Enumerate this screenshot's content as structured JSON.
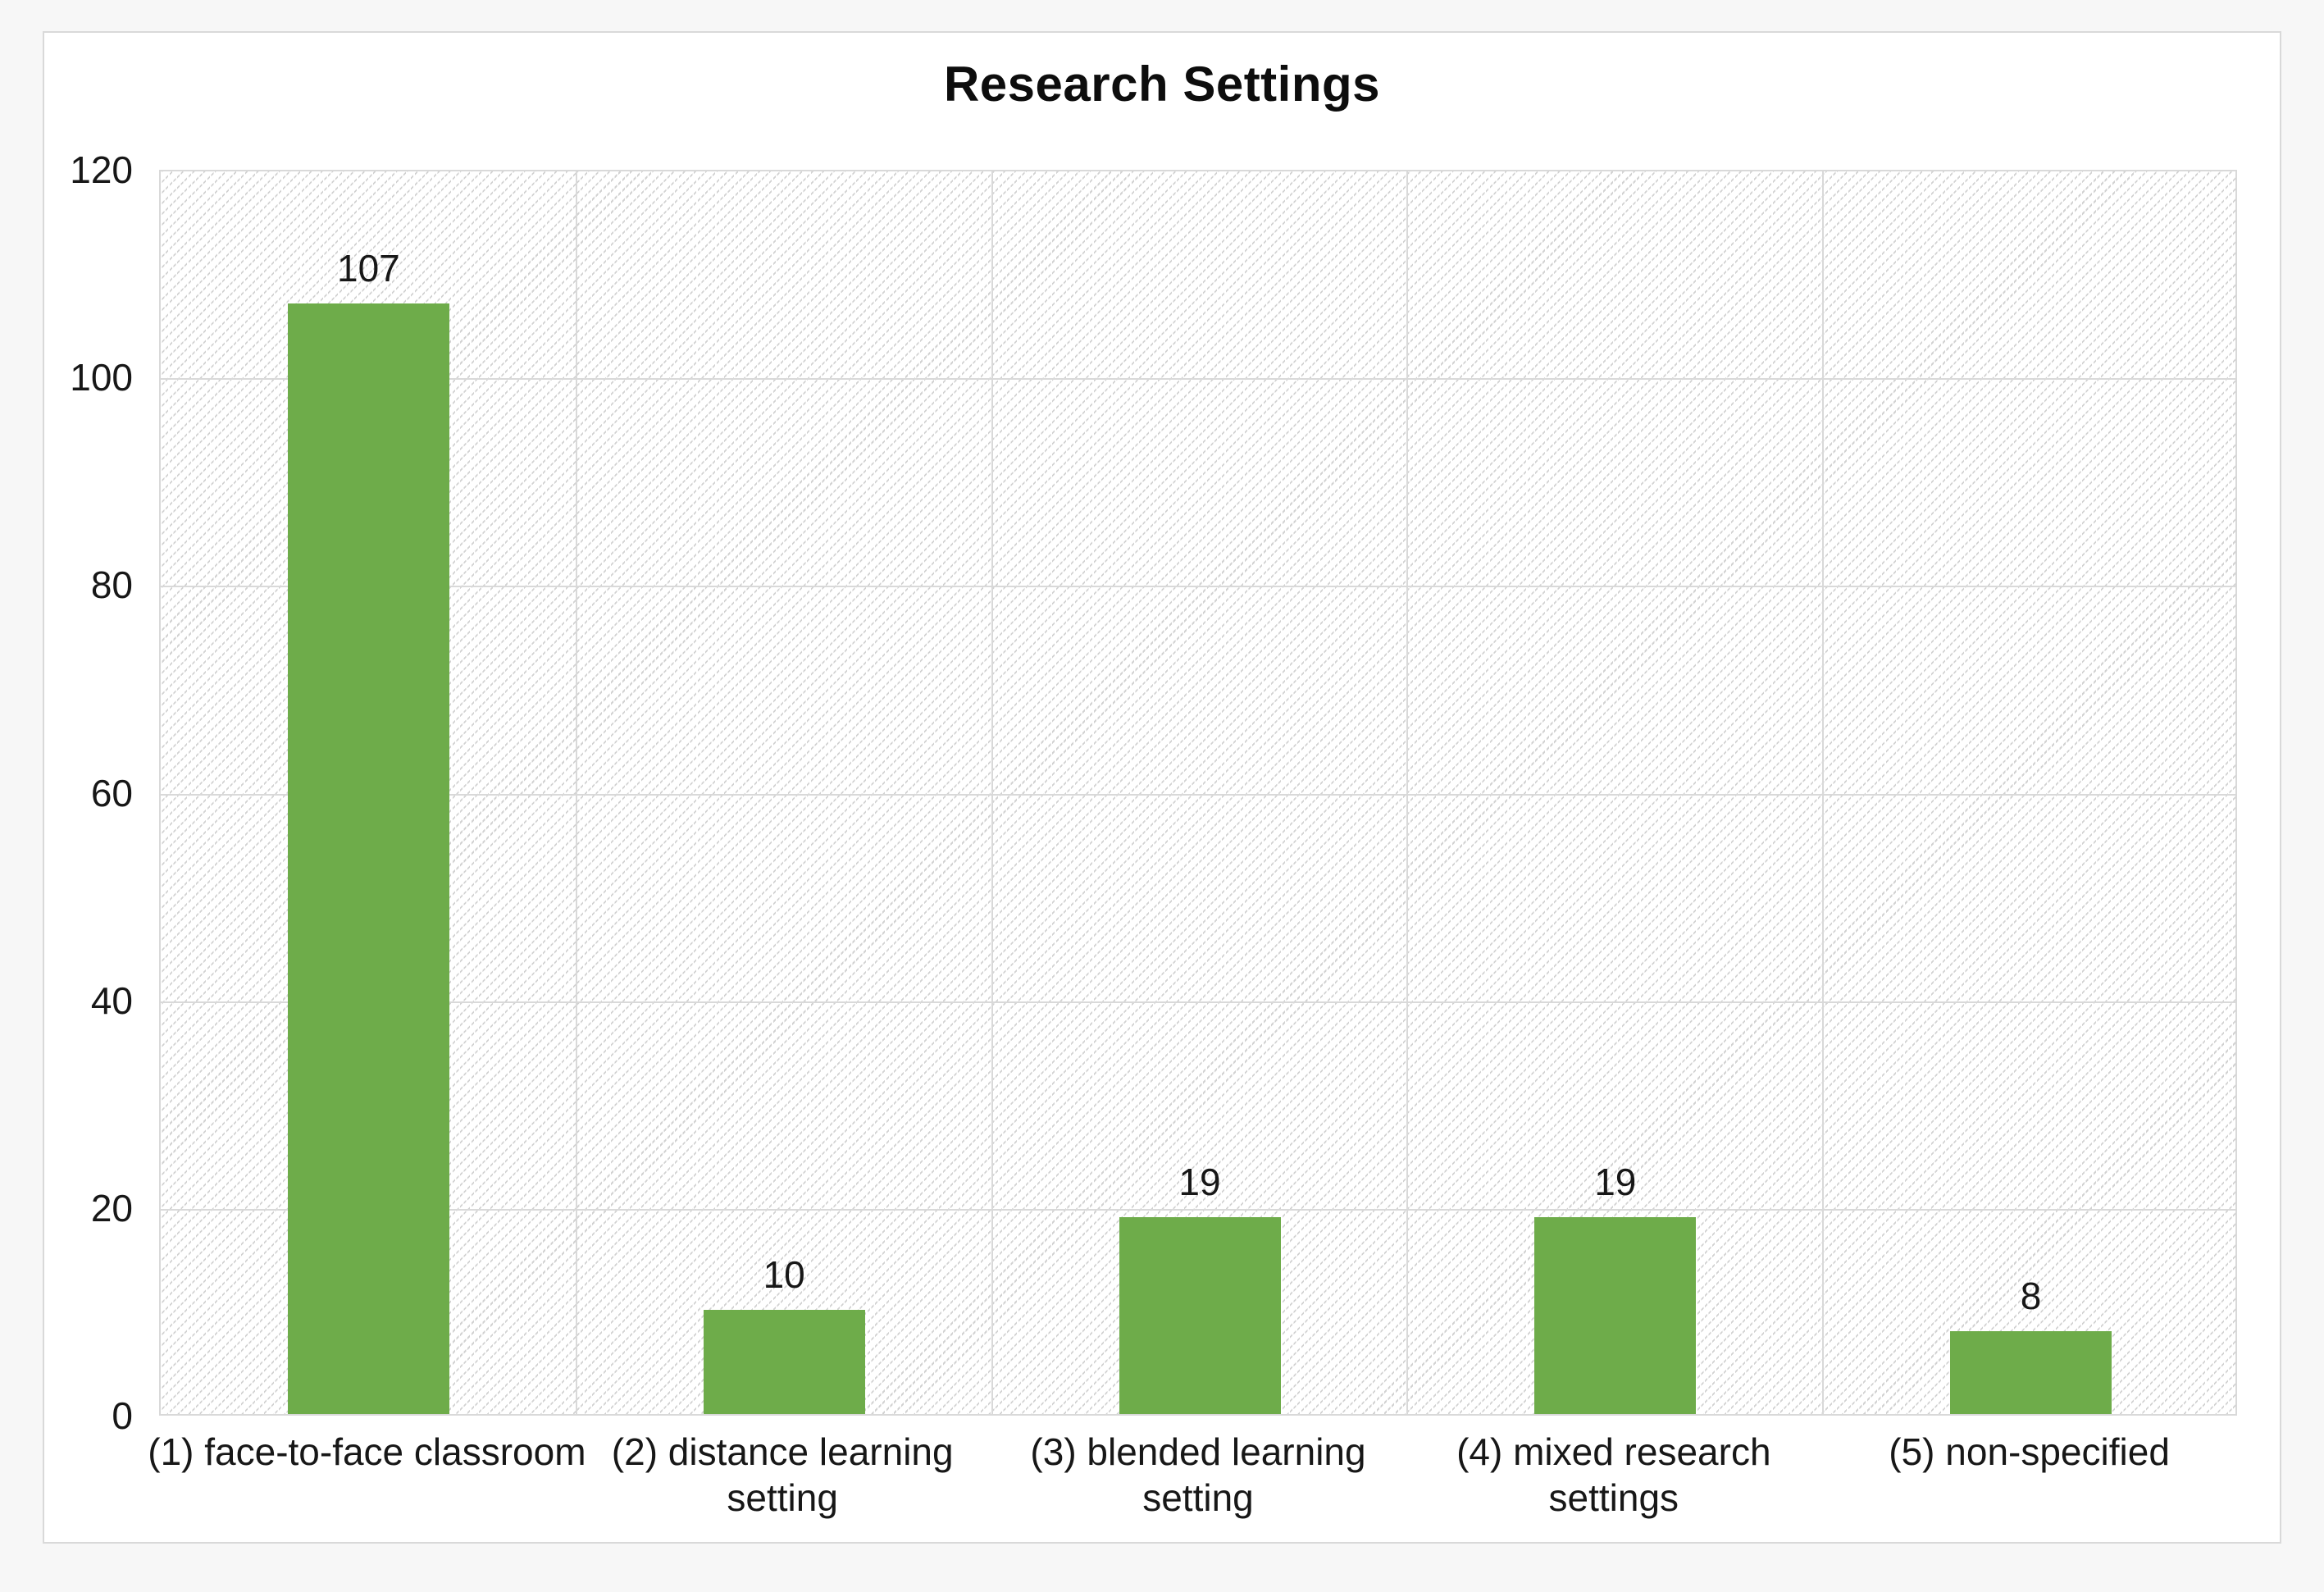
{
  "chart_data": {
    "type": "bar",
    "title": "Research Settings",
    "categories": [
      "(1) face-to-face classroom",
      "(2) distance learning\nsetting",
      "(3) blended learning\nsetting",
      "(4) mixed research\nsettings",
      "(5) non-specified"
    ],
    "values": [
      107,
      10,
      19,
      19,
      8
    ],
    "data_labels": [
      "107",
      "10",
      "19",
      "19",
      "8"
    ],
    "xlabel": "",
    "ylabel": "",
    "ylim": [
      0,
      120
    ],
    "yticks": [
      0,
      20,
      40,
      60,
      80,
      100,
      120
    ],
    "grid": true,
    "legend": "none",
    "bar_color": "#6eac4a",
    "gridline_color": "#d9d9d9",
    "plot_hatch": "dotted upward diagonal",
    "text_color": "#171717"
  }
}
